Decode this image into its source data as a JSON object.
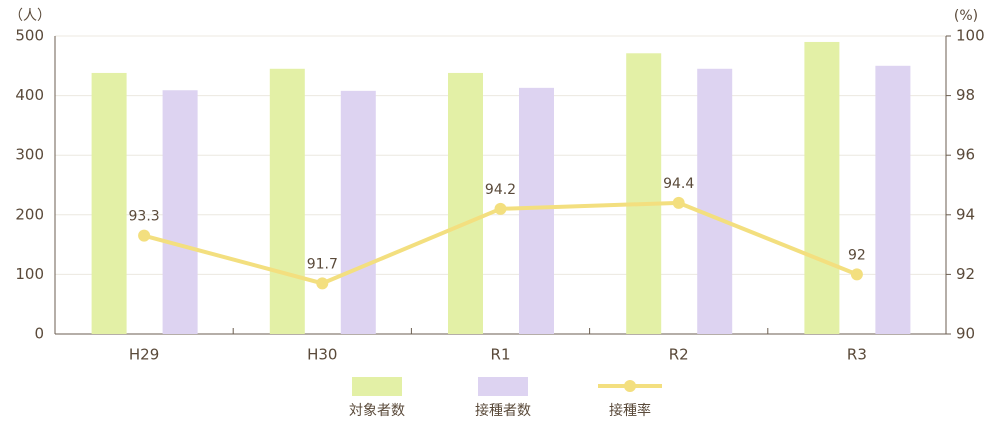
{
  "chart_data": {
    "type": "bar",
    "y_label": "（人）",
    "y2_label": "(%)",
    "categories": [
      "H29",
      "H30",
      "R1",
      "R2",
      "R3"
    ],
    "series": [
      {
        "name": "対象者数",
        "color": "#e3f0a6",
        "values": [
          438,
          445,
          438,
          471,
          490
        ]
      },
      {
        "name": "接種者数",
        "color": "#ddd3f1",
        "values": [
          409,
          408,
          413,
          445,
          450
        ]
      },
      {
        "name": "接種率",
        "type": "line",
        "axis": "y2",
        "color": "#f3df7f",
        "values": [
          93.3,
          91.7,
          94.2,
          94.4,
          92
        ]
      }
    ],
    "ylim": [
      0,
      500
    ],
    "yticks": [
      0,
      100,
      200,
      300,
      400,
      500
    ],
    "y2lim": [
      90,
      100
    ],
    "y2ticks": [
      90,
      92,
      94,
      96,
      98,
      100
    ],
    "grid": true,
    "legend": "bottom"
  }
}
